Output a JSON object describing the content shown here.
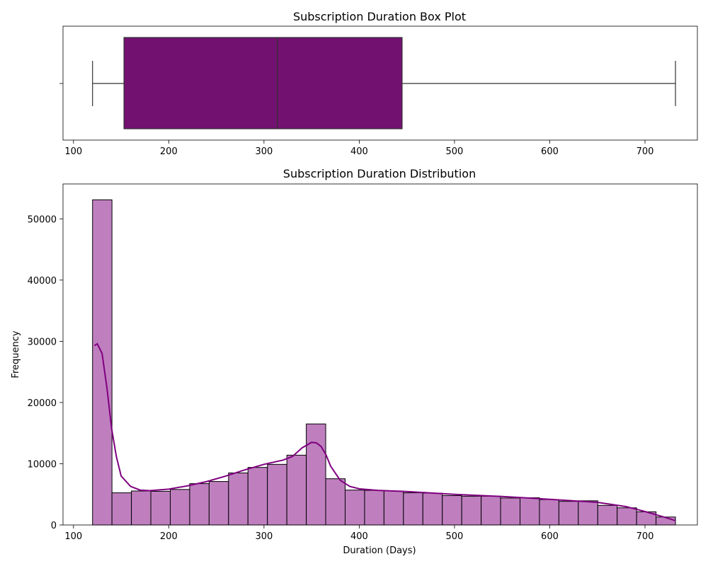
{
  "colors": {
    "box_fill": "#731170",
    "hist_fill": "#bf7fbf",
    "kde_line": "#800080",
    "edge": "#000000",
    "whisker": "#333333"
  },
  "chart_data": [
    {
      "type": "box",
      "title": "Subscription Duration Box Plot",
      "xlabel": "",
      "ylabel": "",
      "xlim": [
        89,
        755
      ],
      "xticks": [
        100,
        200,
        300,
        400,
        500,
        600,
        700
      ],
      "grid": false,
      "stats": {
        "whisker_low": 120,
        "q1": 153,
        "median": 314,
        "q3": 445,
        "whisker_high": 732
      }
    },
    {
      "type": "bar",
      "subtype": "histogram_with_kde",
      "title": "Subscription Duration Distribution",
      "xlabel": "Duration (Days)",
      "ylabel": "Frequency",
      "xlim": [
        89,
        755
      ],
      "ylim": [
        0,
        55700
      ],
      "xticks": [
        100,
        200,
        300,
        400,
        500,
        600,
        700
      ],
      "yticks": [
        0,
        10000,
        20000,
        30000,
        40000,
        50000
      ],
      "grid": false,
      "bin_edges": [
        120,
        140.4,
        160.8,
        181.2,
        201.6,
        222,
        242.4,
        262.8,
        283.2,
        303.6,
        324,
        344.4,
        364.8,
        385.2,
        405.6,
        426,
        446.4,
        466.8,
        487.2,
        507.6,
        528,
        548.4,
        568.8,
        589.2,
        609.6,
        630,
        650.4,
        670.8,
        691.2,
        711.6,
        732
      ],
      "counts": [
        53100,
        5250,
        5550,
        5500,
        5800,
        6750,
        7100,
        8500,
        9400,
        9900,
        11400,
        16500,
        7550,
        5700,
        5650,
        5550,
        5250,
        5200,
        4800,
        4700,
        4700,
        4400,
        4450,
        4150,
        3850,
        3950,
        3200,
        2800,
        2150,
        1300
      ],
      "kde": {
        "x": [
          122,
          125,
          130,
          135,
          140,
          145,
          150,
          160,
          170,
          180,
          200,
          220,
          240,
          260,
          280,
          300,
          320,
          330,
          340,
          350,
          355,
          360,
          365,
          370,
          380,
          390,
          400,
          420,
          450,
          500,
          550,
          600,
          650,
          680,
          700,
          720,
          732
        ],
        "y": [
          29300,
          29600,
          28000,
          22500,
          15800,
          11200,
          8000,
          6300,
          5700,
          5600,
          5850,
          6400,
          7100,
          8000,
          9000,
          9900,
          10600,
          11200,
          12600,
          13500,
          13400,
          12800,
          11500,
          9600,
          7300,
          6300,
          5900,
          5650,
          5450,
          5000,
          4650,
          4200,
          3700,
          3000,
          2200,
          1300,
          700
        ]
      }
    }
  ]
}
